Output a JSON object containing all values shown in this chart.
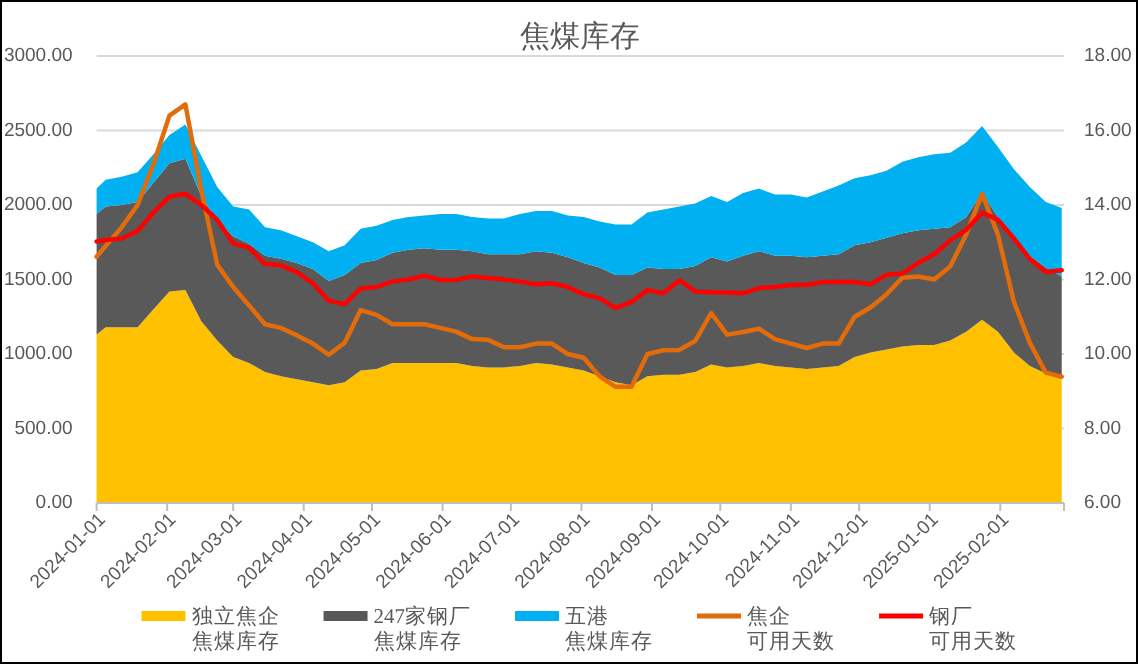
{
  "chart_data": {
    "type": "area",
    "title": "焦煤库存",
    "stacked": true,
    "grid": "y",
    "legend": "bottom",
    "x": [
      "2024-01-01",
      "2024-01-05",
      "2024-01-12",
      "2024-01-19",
      "2024-01-26",
      "2024-02-02",
      "2024-02-09",
      "2024-02-16",
      "2024-02-23",
      "2024-03-01",
      "2024-03-08",
      "2024-03-15",
      "2024-03-22",
      "2024-03-29",
      "2024-04-05",
      "2024-04-12",
      "2024-04-19",
      "2024-04-26",
      "2024-05-03",
      "2024-05-10",
      "2024-05-17",
      "2024-05-24",
      "2024-05-31",
      "2024-06-07",
      "2024-06-14",
      "2024-06-21",
      "2024-06-28",
      "2024-07-05",
      "2024-07-12",
      "2024-07-19",
      "2024-07-26",
      "2024-08-02",
      "2024-08-09",
      "2024-08-16",
      "2024-08-23",
      "2024-08-30",
      "2024-09-06",
      "2024-09-13",
      "2024-09-20",
      "2024-09-27",
      "2024-10-04",
      "2024-10-11",
      "2024-10-18",
      "2024-10-25",
      "2024-11-01",
      "2024-11-08",
      "2024-11-15",
      "2024-11-22",
      "2024-11-29",
      "2024-12-06",
      "2024-12-13",
      "2024-12-20",
      "2024-12-27",
      "2025-01-03",
      "2025-01-10",
      "2025-01-17",
      "2025-01-24",
      "2025-01-31",
      "2025-02-07",
      "2025-02-14",
      "2025-02-21",
      "2025-02-28"
    ],
    "xlim": [
      "2024-01-01",
      "2025-03-01"
    ],
    "xticks": [
      "2024-01-01",
      "2024-02-01",
      "2024-03-01",
      "2024-04-01",
      "2024-05-01",
      "2024-06-01",
      "2024-07-01",
      "2024-08-01",
      "2024-09-01",
      "2024-10-01",
      "2024-11-01",
      "2024-12-01",
      "2025-01-01",
      "2025-02-01",
      {
        "value": "2025-03-01",
        "label": null
      }
    ],
    "ylim": [
      0,
      3000
    ],
    "yticks": [
      {
        "value": 0,
        "label": "0.00"
      },
      {
        "value": 500,
        "label": "500.00"
      },
      {
        "value": 1000,
        "label": "1000.00"
      },
      {
        "value": 1500,
        "label": "1500.00"
      },
      {
        "value": 2000,
        "label": "2000.00"
      },
      {
        "value": 2500,
        "label": "2500.00"
      },
      {
        "value": 3000,
        "label": "3000.00"
      }
    ],
    "y2lim": [
      6,
      18
    ],
    "y2ticks": [
      {
        "value": 6,
        "label": "6.00"
      },
      {
        "value": 8,
        "label": "8.00"
      },
      {
        "value": 10,
        "label": "10.00"
      },
      {
        "value": 12,
        "label": "12.00"
      },
      {
        "value": 14,
        "label": "14.00"
      },
      {
        "value": 16,
        "label": "16.00"
      },
      {
        "value": 18,
        "label": "18.00"
      }
    ],
    "series": [
      {
        "name": "独立焦企焦煤库存",
        "color": "#ffc000",
        "values": [
          1130,
          1180,
          1180,
          1180,
          1300,
          1420,
          1430,
          1220,
          1090,
          980,
          940,
          880,
          850,
          830,
          810,
          790,
          810,
          890,
          900,
          940,
          940,
          940,
          940,
          940,
          920,
          910,
          910,
          920,
          940,
          930,
          910,
          890,
          850,
          810,
          790,
          850,
          860,
          860,
          880,
          930,
          910,
          920,
          940,
          920,
          910,
          900,
          910,
          920,
          980,
          1010,
          1030,
          1050,
          1060,
          1060,
          1090,
          1150,
          1230,
          1150,
          1010,
          920,
          870,
          850
        ]
      },
      {
        "name": "247家钢厂焦煤库存",
        "color": "#595959",
        "values": [
          810,
          810,
          820,
          840,
          850,
          860,
          880,
          840,
          800,
          810,
          800,
          780,
          790,
          780,
          760,
          700,
          720,
          720,
          730,
          740,
          760,
          770,
          760,
          760,
          770,
          760,
          760,
          750,
          750,
          750,
          740,
          720,
          730,
          720,
          740,
          730,
          710,
          710,
          710,
          720,
          710,
          740,
          750,
          740,
          750,
          750,
          750,
          750,
          750,
          740,
          750,
          760,
          770,
          780,
          760,
          770,
          850,
          770,
          750,
          740,
          710,
          670
        ]
      },
      {
        "name": "五港焦煤库存",
        "color": "#00b0f0",
        "values": [
          170,
          180,
          190,
          200,
          190,
          190,
          230,
          270,
          230,
          200,
          230,
          190,
          190,
          180,
          180,
          200,
          200,
          230,
          230,
          220,
          220,
          220,
          240,
          240,
          230,
          240,
          240,
          270,
          270,
          280,
          280,
          310,
          310,
          340,
          340,
          370,
          400,
          420,
          420,
          410,
          400,
          420,
          420,
          410,
          410,
          400,
          430,
          460,
          450,
          450,
          450,
          480,
          490,
          500,
          500,
          500,
          450,
          470,
          480,
          460,
          440,
          460
        ]
      },
      {
        "name": "焦企可用天数",
        "type": "line",
        "axis": "y2",
        "color": "#e26b0a",
        "values": [
          12.61,
          12.9,
          13.4,
          14.0,
          15.1,
          16.4,
          16.7,
          14.4,
          12.4,
          11.8,
          11.3,
          10.8,
          10.7,
          10.5,
          10.28,
          9.98,
          10.3,
          11.18,
          11.05,
          10.8,
          10.8,
          10.8,
          10.7,
          10.6,
          10.4,
          10.38,
          10.18,
          10.18,
          10.28,
          10.28,
          10.0,
          9.9,
          9.4,
          9.12,
          9.12,
          10.0,
          10.1,
          10.11,
          10.35,
          11.1,
          10.52,
          10.59,
          10.68,
          10.4,
          10.28,
          10.16,
          10.28,
          10.28,
          11.0,
          11.25,
          11.6,
          12.05,
          12.08,
          12.0,
          12.35,
          13.2,
          14.3,
          13.2,
          11.4,
          10.3,
          9.5,
          9.39
        ]
      },
      {
        "name": "钢厂可用天数",
        "type": "line",
        "axis": "y2",
        "color": "#ff0000",
        "values": [
          13.02,
          13.06,
          13.1,
          13.3,
          13.8,
          14.22,
          14.3,
          14.0,
          13.6,
          12.97,
          12.85,
          12.42,
          12.38,
          12.2,
          11.9,
          11.43,
          11.34,
          11.76,
          11.8,
          11.95,
          12.0,
          12.1,
          11.99,
          11.99,
          12.08,
          12.04,
          12.0,
          11.95,
          11.87,
          11.9,
          11.8,
          11.6,
          11.5,
          11.23,
          11.4,
          11.72,
          11.63,
          11.98,
          11.68,
          11.66,
          11.65,
          11.63,
          11.77,
          11.8,
          11.85,
          11.86,
          11.93,
          11.94,
          11.93,
          11.87,
          12.13,
          12.16,
          12.45,
          12.68,
          13.05,
          13.33,
          13.8,
          13.6,
          13.1,
          12.55,
          12.2,
          12.25
        ]
      }
    ]
  }
}
